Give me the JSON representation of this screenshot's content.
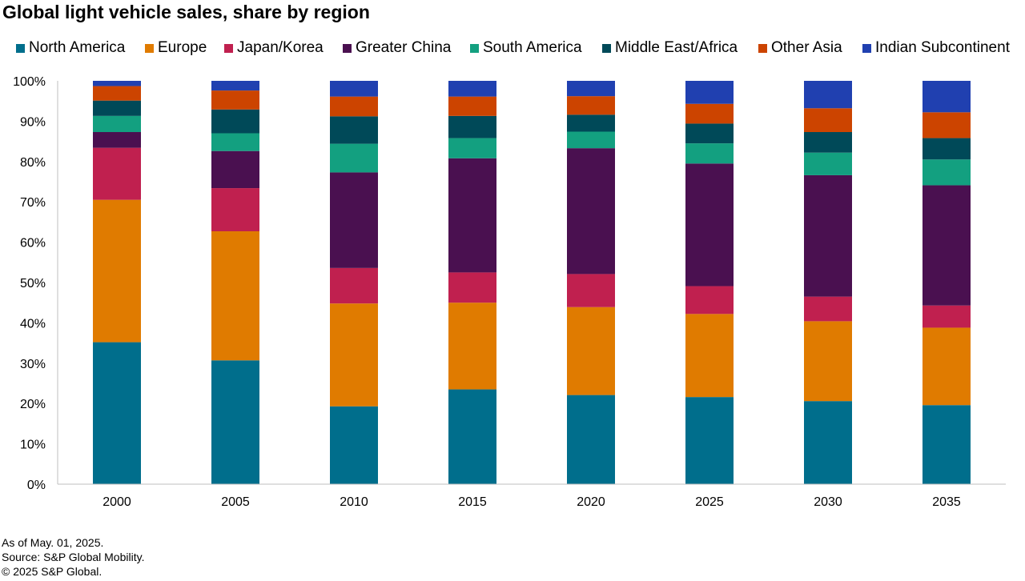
{
  "title": "Global light vehicle sales, share by region",
  "footer": {
    "line1": "As of May. 01, 2025.",
    "line2": "Source: S&P Global Mobility.",
    "line3": "© 2025 S&P Global."
  },
  "chart_data": {
    "type": "bar",
    "stacked": true,
    "title": "Global light vehicle sales, share by region",
    "xlabel": "",
    "ylabel": "",
    "ylim": [
      0,
      100
    ],
    "y_ticks": [
      "0%",
      "10%",
      "20%",
      "30%",
      "40%",
      "50%",
      "60%",
      "70%",
      "80%",
      "90%",
      "100%"
    ],
    "grid": false,
    "legend_position": "top",
    "categories": [
      "2000",
      "2005",
      "2010",
      "2015",
      "2020",
      "2025",
      "2030",
      "2035"
    ],
    "series": [
      {
        "name": "North America",
        "color": "#006e8c",
        "values": [
          35.2,
          30.7,
          19.3,
          23.5,
          22.1,
          21.6,
          20.6,
          19.6
        ]
      },
      {
        "name": "Europe",
        "color": "#e07b00",
        "values": [
          35.3,
          32.0,
          25.5,
          21.5,
          21.8,
          20.6,
          19.8,
          19.2
        ]
      },
      {
        "name": "Japan/Korea",
        "color": "#c0204f",
        "values": [
          12.9,
          10.7,
          8.8,
          7.5,
          8.2,
          6.9,
          6.1,
          5.5
        ]
      },
      {
        "name": "Greater China",
        "color": "#4a1050",
        "values": [
          3.9,
          9.2,
          23.7,
          28.3,
          31.2,
          30.4,
          30.1,
          29.8
        ]
      },
      {
        "name": "South America",
        "color": "#13a080",
        "values": [
          4.0,
          4.4,
          7.1,
          5.0,
          4.1,
          5.0,
          5.6,
          6.4
        ]
      },
      {
        "name": "Middle East/Africa",
        "color": "#004958",
        "values": [
          3.8,
          5.9,
          6.8,
          5.5,
          4.2,
          4.9,
          5.1,
          5.3
        ]
      },
      {
        "name": "Other Asia",
        "color": "#cc4400",
        "values": [
          3.6,
          4.7,
          4.9,
          4.8,
          4.6,
          4.9,
          5.9,
          6.4
        ]
      },
      {
        "name": "Indian Subcontinent",
        "color": "#2040b0",
        "values": [
          1.3,
          2.4,
          3.9,
          3.9,
          3.8,
          5.7,
          6.8,
          7.8
        ]
      }
    ]
  }
}
